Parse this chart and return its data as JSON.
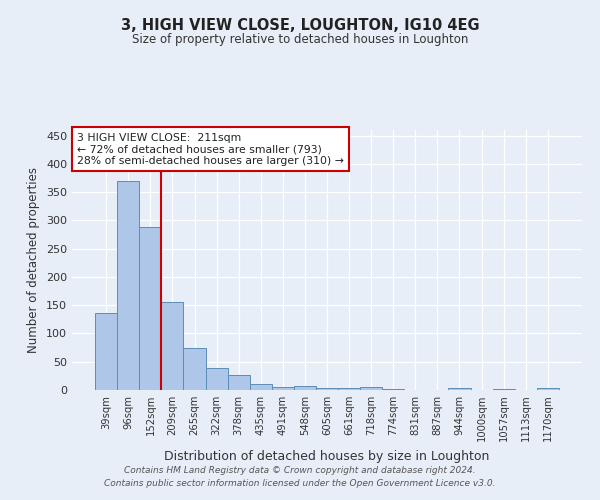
{
  "title": "3, HIGH VIEW CLOSE, LOUGHTON, IG10 4EG",
  "subtitle": "Size of property relative to detached houses in Loughton",
  "xlabel": "Distribution of detached houses by size in Loughton",
  "ylabel": "Number of detached properties",
  "bar_labels": [
    "39sqm",
    "96sqm",
    "152sqm",
    "209sqm",
    "265sqm",
    "322sqm",
    "378sqm",
    "435sqm",
    "491sqm",
    "548sqm",
    "605sqm",
    "661sqm",
    "718sqm",
    "774sqm",
    "831sqm",
    "887sqm",
    "944sqm",
    "1000sqm",
    "1057sqm",
    "1113sqm",
    "1170sqm"
  ],
  "bar_values": [
    136,
    370,
    289,
    155,
    74,
    39,
    26,
    10,
    6,
    7,
    4,
    4,
    5,
    2,
    0,
    0,
    4,
    0,
    2,
    0,
    3
  ],
  "bar_color": "#aec6e8",
  "bar_edge_color": "#5b8db8",
  "background_color": "#e8eef8",
  "grid_color": "#ffffff",
  "vline_color": "#cc0000",
  "vline_pos": 2.5,
  "annotation_text": "3 HIGH VIEW CLOSE:  211sqm\n← 72% of detached houses are smaller (793)\n28% of semi-detached houses are larger (310) →",
  "annotation_box_color": "#ffffff",
  "annotation_box_edge_color": "#cc0000",
  "footer_text": "Contains HM Land Registry data © Crown copyright and database right 2024.\nContains public sector information licensed under the Open Government Licence v3.0.",
  "ylim": [
    0,
    460
  ],
  "yticks": [
    0,
    50,
    100,
    150,
    200,
    250,
    300,
    350,
    400,
    450
  ]
}
